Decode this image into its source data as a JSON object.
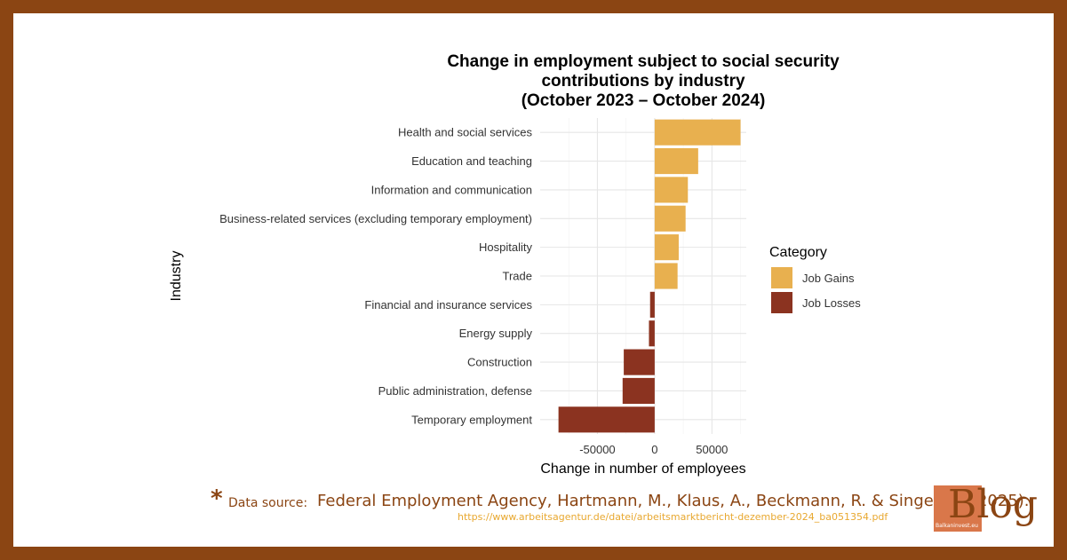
{
  "chart_data": {
    "type": "bar",
    "orientation": "horizontal",
    "title": [
      "Change in employment subject to social security",
      "contributions by industry",
      "(October 2023 – October 2024)"
    ],
    "xlabel": "Change in number of employees",
    "ylabel": "Industry",
    "xlim": [
      -100000,
      80000
    ],
    "xticks": [
      -50000,
      0,
      50000
    ],
    "xtick_labels": [
      "-50000",
      "0",
      "50000"
    ],
    "grid": true,
    "legend_title": "Category",
    "legend_position": "right",
    "series": [
      {
        "name": "Job Gains",
        "color": "#e8b04f"
      },
      {
        "name": "Job Losses",
        "color": "#8b3320"
      }
    ],
    "categories": [
      "Health and social services",
      "Education and teaching",
      "Information and communication",
      "Business-related services (excluding temporary employment)",
      "Hospitality",
      "Trade",
      "Financial and insurance services",
      "Energy supply",
      "Construction",
      "Public administration, defense",
      "Temporary employment"
    ],
    "values": [
      75000,
      38000,
      29000,
      27000,
      21000,
      20000,
      -4000,
      -5000,
      -27000,
      -28000,
      -84000
    ],
    "value_category": [
      "Job Gains",
      "Job Gains",
      "Job Gains",
      "Job Gains",
      "Job Gains",
      "Job Gains",
      "Job Losses",
      "Job Losses",
      "Job Losses",
      "Job Losses",
      "Job Losses"
    ]
  },
  "footer": {
    "asterisk": "*",
    "source_label": "Data source:",
    "citation": "Federal Employment Agency, Hartmann, M., Klaus, A., Beckmann, R. & Singer, K. (2025).",
    "url": "https://www.arbeitsagentur.de/datei/arbeitsmarktbericht-dezember-2024_ba051354.pdf",
    "logo_text": "Blog",
    "logo_small": "Balkaninvest.eu"
  }
}
